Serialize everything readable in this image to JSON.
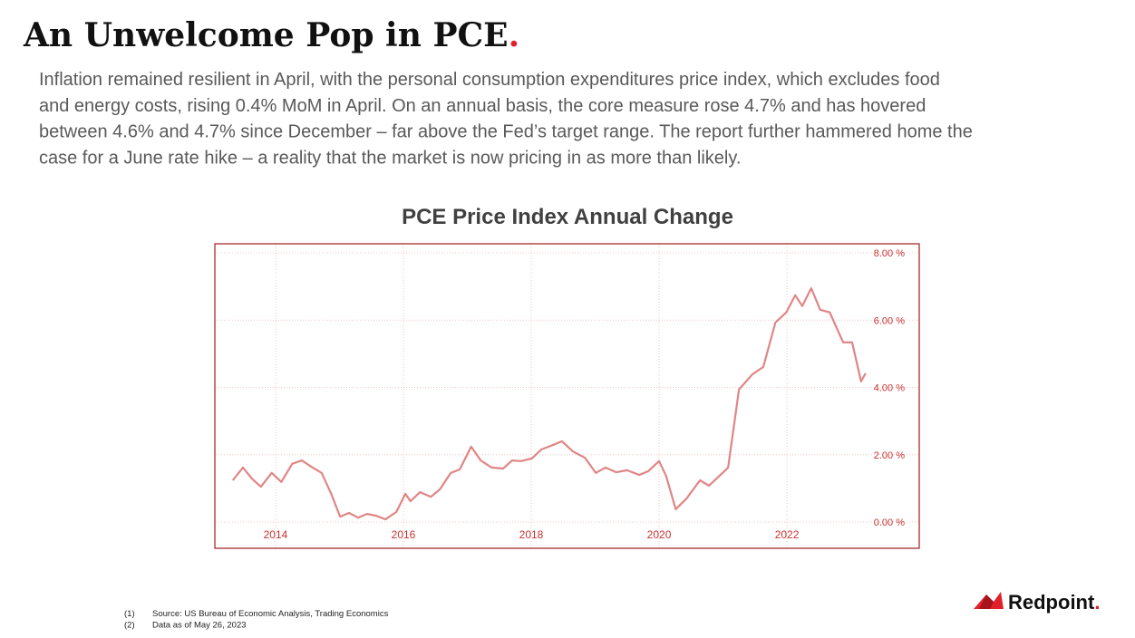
{
  "header": {
    "title": "An Unwelcome Pop in PCE",
    "title_mark": "."
  },
  "body_lines": [
    "Inflation remained resilient in April, with the personal consumption expenditures price index, which excludes food",
    "and energy costs, rising 0.4% MoM in April. On an annual basis, the core measure rose 4.7% and has hovered",
    "between 4.6% and 4.7% since December – far above the Fed’s target range. The report further hammered home the",
    "case for a June rate hike – a reality that the market is now pricing in as more than likely."
  ],
  "chart_data": {
    "type": "line",
    "title": "PCE Price Index Annual Change",
    "x": [
      2013.33,
      2013.49,
      2013.63,
      2013.77,
      2013.94,
      2014.09,
      2014.26,
      2014.41,
      2014.58,
      2014.72,
      2014.87,
      2015.01,
      2015.15,
      2015.29,
      2015.43,
      2015.57,
      2015.72,
      2015.89,
      2016.03,
      2016.11,
      2016.26,
      2016.43,
      2016.57,
      2016.74,
      2016.88,
      2017.06,
      2017.21,
      2017.38,
      2017.56,
      2017.7,
      2017.84,
      2018.01,
      2018.16,
      2018.3,
      2018.48,
      2018.65,
      2018.84,
      2019.01,
      2019.16,
      2019.33,
      2019.5,
      2019.69,
      2019.83,
      2020.0,
      2020.11,
      2020.26,
      2020.43,
      2020.64,
      2020.78,
      2020.96,
      2021.08,
      2021.25,
      2021.46,
      2021.63,
      2021.82,
      2021.99,
      2022.13,
      2022.24,
      2022.38,
      2022.52,
      2022.67,
      2022.88,
      2023.02,
      2023.16,
      2023.23
    ],
    "series": [
      {
        "name": "PCE Price Index Annual Change",
        "color": "#e08585",
        "values": [
          1.24,
          1.62,
          1.29,
          1.05,
          1.46,
          1.19,
          1.73,
          1.83,
          1.62,
          1.46,
          0.84,
          0.16,
          0.27,
          0.13,
          0.24,
          0.19,
          0.08,
          0.3,
          0.84,
          0.62,
          0.89,
          0.75,
          0.97,
          1.46,
          1.56,
          2.24,
          1.83,
          1.62,
          1.59,
          1.83,
          1.81,
          1.89,
          2.16,
          2.26,
          2.4,
          2.1,
          1.91,
          1.46,
          1.62,
          1.48,
          1.54,
          1.4,
          1.51,
          1.81,
          1.37,
          0.38,
          0.7,
          1.24,
          1.08,
          1.4,
          1.62,
          3.94,
          4.39,
          4.61,
          5.93,
          6.23,
          6.74,
          6.42,
          6.95,
          6.31,
          6.23,
          5.34,
          5.34,
          4.18,
          4.42
        ]
      }
    ],
    "xlim": [
      2013.05,
      2024.07
    ],
    "xticks": [
      2014,
      2016,
      2018,
      2020,
      2022
    ],
    "ylim": [
      -0.78,
      8.27
    ],
    "yticks": [
      {
        "value": 0,
        "label": "0.00 %"
      },
      {
        "value": 2,
        "label": "2.00 %"
      },
      {
        "value": 4,
        "label": "4.00 %"
      },
      {
        "value": 6,
        "label": "6.00 %"
      },
      {
        "value": 8,
        "label": "8.00 %"
      }
    ],
    "grid": true,
    "axis_color": "#c83232"
  },
  "footnotes": [
    {
      "number": "(1)",
      "text": "Source: US Bureau of Economic Analysis, Trading Economics"
    },
    {
      "number": "(2)",
      "text": "Data as of May 26, 2023"
    }
  ],
  "logo": {
    "name": "Redpoint",
    "mark": "."
  }
}
